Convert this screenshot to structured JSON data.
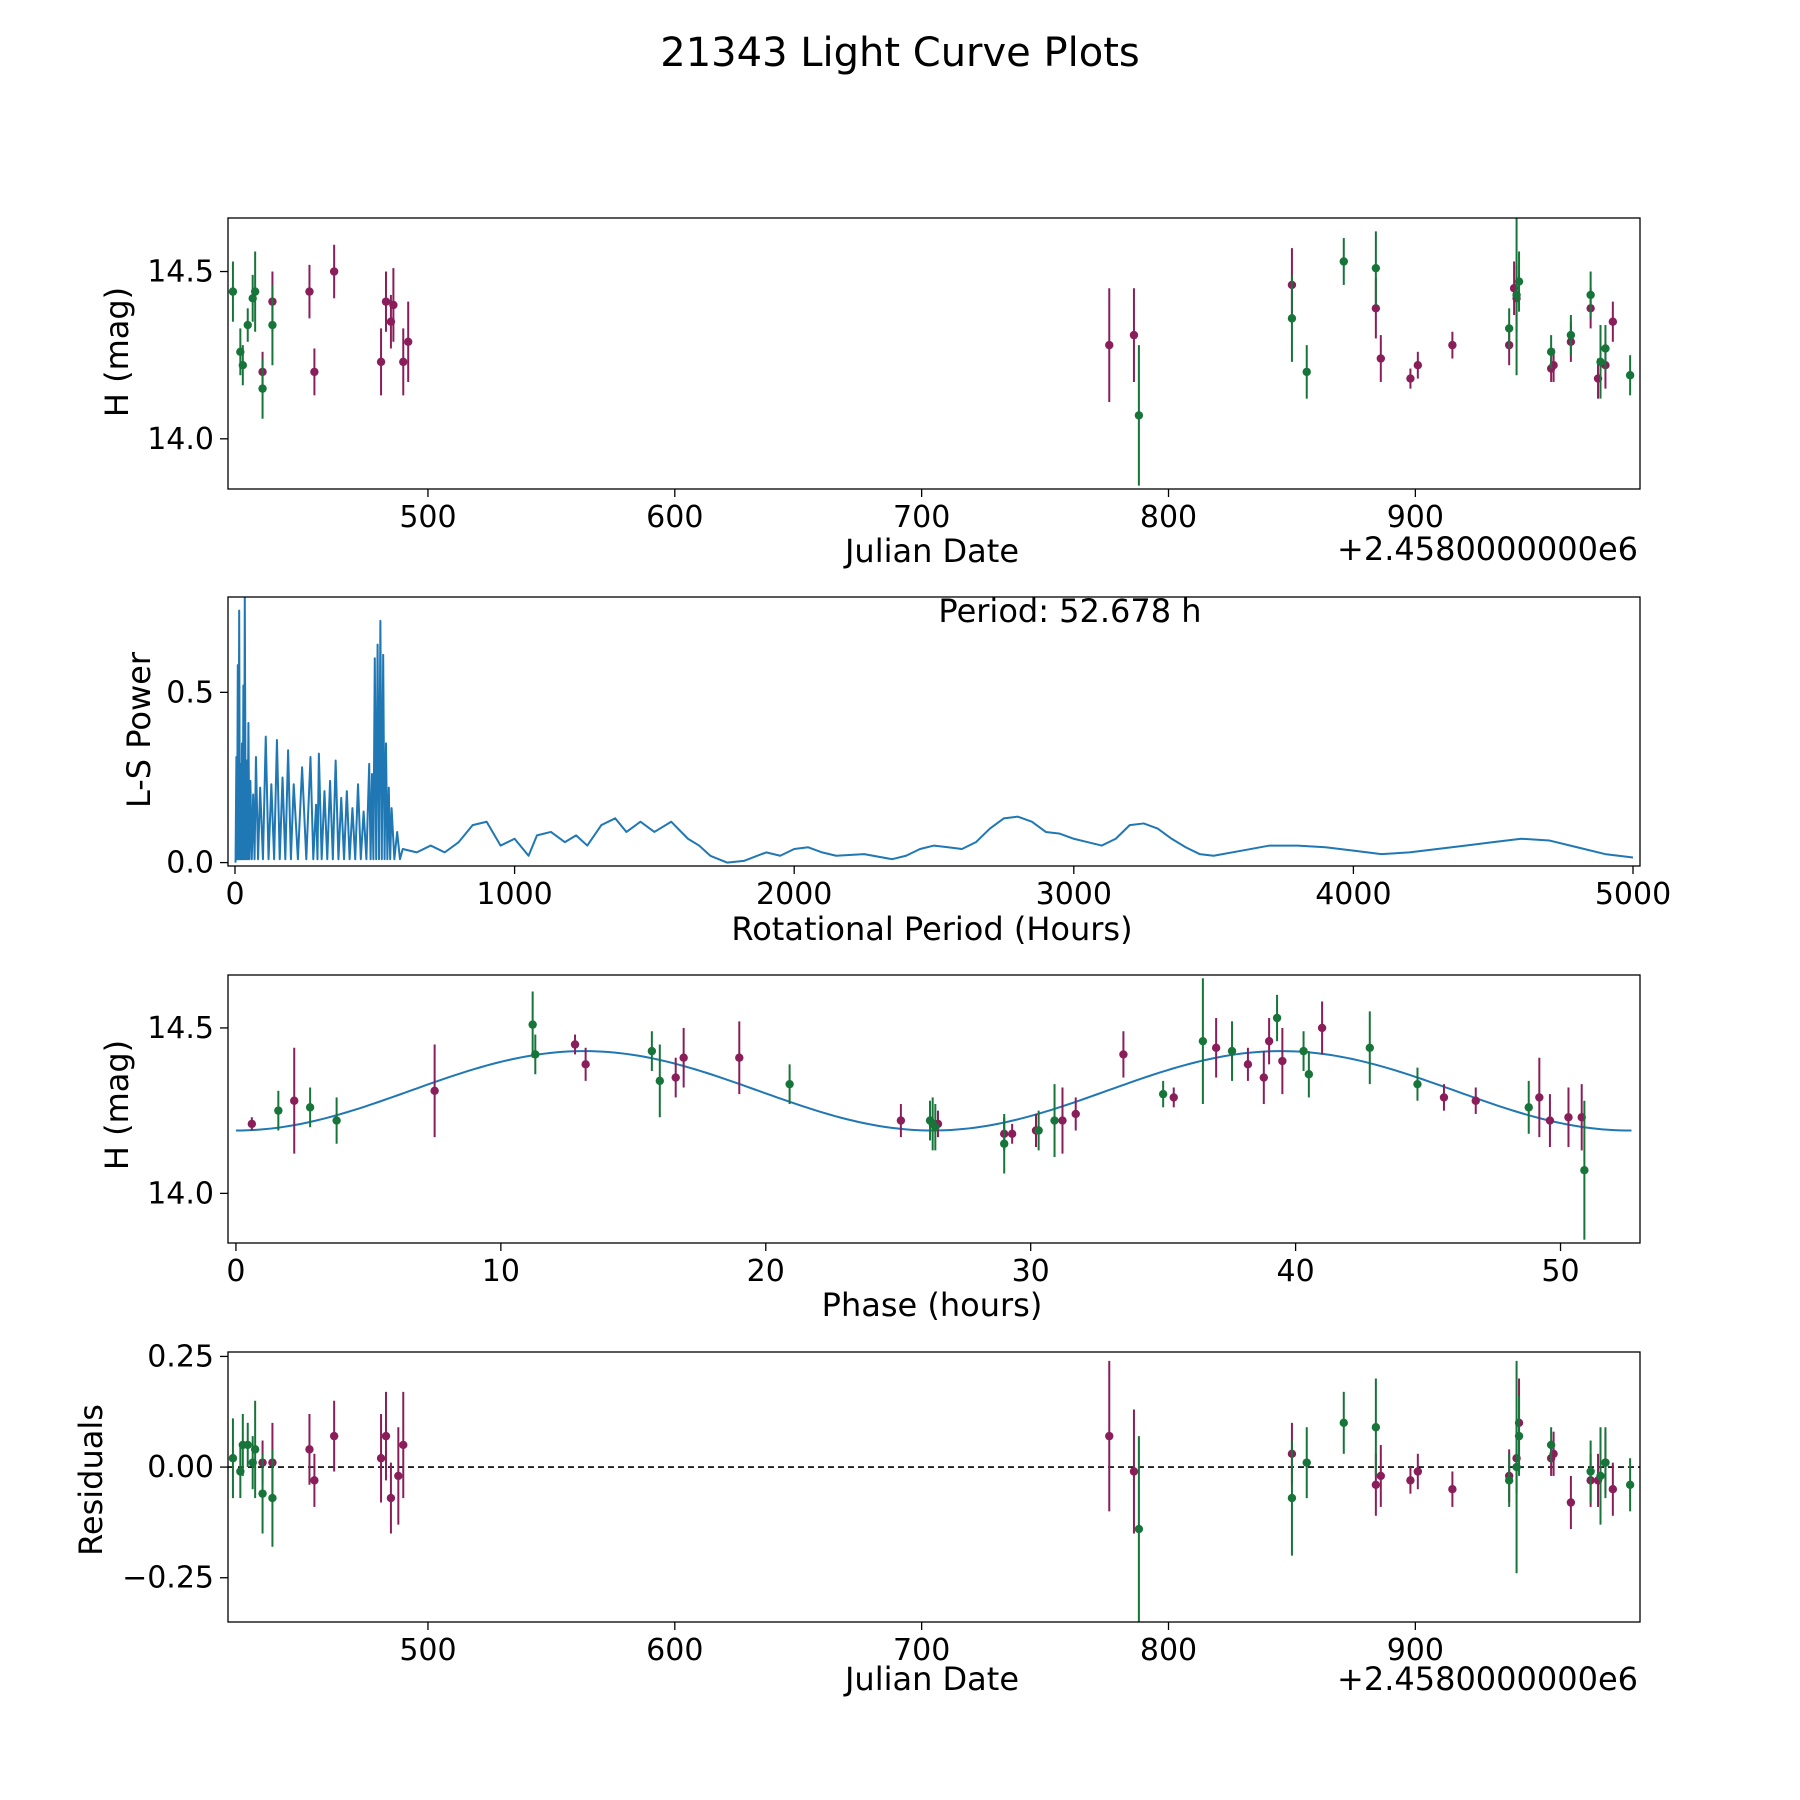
{
  "chart_data": {
    "title": "21343 Light Curve Plots",
    "colors": {
      "series_a": "#8a1e5a",
      "series_b": "#17753a",
      "curve": "#1f77b4",
      "axis": "#000000"
    },
    "panels": [
      {
        "id": "lightcurve",
        "type": "scatter",
        "xlabel": "Julian Date",
        "ylabel": "H (mag)",
        "offset_label": "+2.4580000000e6",
        "xlim": [
          419,
          991
        ],
        "ylim": [
          13.85,
          14.66
        ],
        "xticks": [
          500,
          600,
          700,
          800,
          900
        ],
        "yticks": [
          14.0,
          14.5
        ],
        "ytick_labels": [
          "14.0",
          "14.5"
        ],
        "series": [
          {
            "name": "series_a",
            "color": "#8a1e5a",
            "x": [
              433,
              437,
              452,
              454,
              462,
              481,
              483,
              485,
              486,
              490,
              492,
              776,
              786,
              850,
              884,
              886,
              898,
              901,
              915,
              938,
              940,
              941,
              955,
              956,
              963,
              971,
              974,
              977,
              980
            ],
            "y": [
              14.2,
              14.41,
              14.44,
              14.2,
              14.5,
              14.23,
              14.41,
              14.35,
              14.4,
              14.23,
              14.29,
              14.28,
              14.31,
              14.46,
              14.39,
              14.24,
              14.18,
              14.22,
              14.28,
              14.28,
              14.45,
              14.42,
              14.21,
              14.22,
              14.29,
              14.39,
              14.18,
              14.22,
              14.35
            ],
            "err": [
              0.06,
              0.09,
              0.08,
              0.07,
              0.08,
              0.1,
              0.09,
              0.08,
              0.11,
              0.1,
              0.12,
              0.17,
              0.14,
              0.11,
              0.09,
              0.07,
              0.03,
              0.04,
              0.04,
              0.06,
              0.08,
              0.1,
              0.04,
              0.05,
              0.06,
              0.06,
              0.06,
              0.07,
              0.06
            ]
          },
          {
            "name": "series_b",
            "color": "#17753a",
            "x": [
              421,
              424,
              425,
              427,
              429,
              430,
              433,
              437,
              788,
              850,
              856,
              871,
              884,
              938,
              941,
              942,
              955,
              963,
              971,
              975,
              977,
              987
            ],
            "y": [
              14.44,
              14.26,
              14.22,
              14.34,
              14.42,
              14.44,
              14.15,
              14.34,
              14.07,
              14.36,
              14.2,
              14.53,
              14.51,
              14.33,
              14.43,
              14.47,
              14.26,
              14.31,
              14.43,
              14.23,
              14.27,
              14.19
            ],
            "err": [
              0.09,
              0.07,
              0.06,
              0.05,
              0.07,
              0.12,
              0.09,
              0.12,
              0.21,
              0.13,
              0.08,
              0.07,
              0.11,
              0.06,
              0.24,
              0.09,
              0.05,
              0.06,
              0.07,
              0.11,
              0.07,
              0.06
            ]
          }
        ]
      },
      {
        "id": "periodogram",
        "type": "line",
        "xlabel": "Rotational Period (Hours)",
        "ylabel": "L-S Power",
        "annotation": "Period: 52.678 h",
        "xlim": [
          -25,
          5025
        ],
        "ylim": [
          -0.01,
          0.78
        ],
        "xticks": [
          0,
          1000,
          2000,
          3000,
          4000,
          5000
        ],
        "yticks": [
          0.0,
          0.5
        ],
        "ytick_labels": [
          "0.0",
          "0.5"
        ],
        "color": "#1f77b4",
        "smooth": {
          "x": [
            600,
            650,
            700,
            750,
            800,
            850,
            900,
            950,
            1000,
            1050,
            1080,
            1130,
            1180,
            1220,
            1260,
            1310,
            1360,
            1400,
            1450,
            1500,
            1560,
            1620,
            1660,
            1700,
            1760,
            1820,
            1900,
            1950,
            2000,
            2050,
            2100,
            2150,
            2250,
            2350,
            2400,
            2450,
            2500,
            2550,
            2600,
            2650,
            2700,
            2750,
            2800,
            2850,
            2900,
            2950,
            3000,
            3050,
            3100,
            3150,
            3200,
            3250,
            3300,
            3350,
            3400,
            3450,
            3500,
            3600,
            3700,
            3800,
            3900,
            4000,
            4100,
            4200,
            4300,
            4400,
            4500,
            4600,
            4700,
            4800,
            4900,
            5000
          ],
          "y": [
            0.04,
            0.03,
            0.05,
            0.03,
            0.06,
            0.11,
            0.12,
            0.05,
            0.07,
            0.02,
            0.08,
            0.09,
            0.06,
            0.08,
            0.05,
            0.11,
            0.13,
            0.09,
            0.12,
            0.09,
            0.12,
            0.07,
            0.05,
            0.02,
            0.0,
            0.005,
            0.03,
            0.02,
            0.04,
            0.045,
            0.03,
            0.02,
            0.025,
            0.01,
            0.02,
            0.04,
            0.05,
            0.045,
            0.04,
            0.06,
            0.1,
            0.13,
            0.135,
            0.12,
            0.09,
            0.085,
            0.07,
            0.06,
            0.05,
            0.07,
            0.11,
            0.115,
            0.1,
            0.07,
            0.045,
            0.025,
            0.02,
            0.035,
            0.05,
            0.05,
            0.045,
            0.035,
            0.025,
            0.03,
            0.04,
            0.05,
            0.06,
            0.07,
            0.065,
            0.045,
            0.025,
            0.015
          ]
        },
        "peaks": {
          "x": [
            5,
            10,
            15,
            20,
            25,
            30,
            35,
            42,
            48,
            55,
            65,
            75,
            90,
            110,
            130,
            150,
            170,
            190,
            210,
            240,
            270,
            290,
            300,
            320,
            340,
            360,
            380,
            400,
            420,
            440,
            460,
            480,
            490,
            500,
            510,
            520,
            530,
            540,
            550,
            560,
            580
          ],
          "y": [
            0.31,
            0.58,
            0.74,
            0.29,
            0.35,
            0.52,
            0.78,
            0.3,
            0.41,
            0.24,
            0.2,
            0.31,
            0.22,
            0.37,
            0.23,
            0.36,
            0.25,
            0.33,
            0.23,
            0.28,
            0.31,
            0.17,
            0.32,
            0.21,
            0.24,
            0.3,
            0.19,
            0.21,
            0.16,
            0.23,
            0.15,
            0.29,
            0.26,
            0.6,
            0.64,
            0.71,
            0.61,
            0.35,
            0.22,
            0.16,
            0.09
          ]
        }
      },
      {
        "id": "phase",
        "type": "scatter",
        "xlabel": "Phase (hours)",
        "ylabel": "H (mag)",
        "xlim": [
          -0.3,
          53.0
        ],
        "ylim": [
          13.85,
          14.66
        ],
        "xticks": [
          0,
          10,
          20,
          30,
          40,
          50
        ],
        "yticks": [
          14.0,
          14.5
        ],
        "ytick_labels": [
          "14.0",
          "14.5"
        ],
        "model": {
          "mean": 14.31,
          "amplitude": 0.12,
          "period": 26.3,
          "t0": 0.0,
          "xmax": 52.678,
          "color": "#1f77b4"
        },
        "series": [
          {
            "name": "series_a",
            "color": "#8a1e5a",
            "x": [
              0.6,
              2.2,
              7.5,
              12.8,
              13.2,
              16.6,
              16.9,
              19.0,
              25.1,
              26.5,
              29.0,
              29.3,
              30.2,
              31.2,
              31.7,
              33.5,
              35.4,
              37.0,
              38.2,
              38.8,
              39.0,
              39.5,
              41.0,
              45.6,
              46.8,
              49.2,
              49.6,
              50.3,
              50.8
            ],
            "y": [
              14.21,
              14.28,
              14.31,
              14.45,
              14.39,
              14.35,
              14.41,
              14.41,
              14.22,
              14.21,
              14.18,
              14.18,
              14.19,
              14.22,
              14.24,
              14.42,
              14.29,
              14.44,
              14.39,
              14.35,
              14.46,
              14.4,
              14.5,
              14.29,
              14.28,
              14.29,
              14.22,
              14.23,
              14.23
            ],
            "err": [
              0.02,
              0.16,
              0.14,
              0.03,
              0.05,
              0.06,
              0.09,
              0.11,
              0.05,
              0.04,
              0.05,
              0.03,
              0.05,
              0.1,
              0.05,
              0.07,
              0.03,
              0.09,
              0.05,
              0.08,
              0.07,
              0.1,
              0.08,
              0.04,
              0.04,
              0.12,
              0.08,
              0.09,
              0.1
            ]
          },
          {
            "name": "series_b",
            "color": "#17753a",
            "x": [
              1.6,
              2.8,
              3.8,
              11.2,
              11.3,
              15.7,
              16.0,
              20.9,
              26.2,
              26.3,
              26.4,
              29.0,
              30.3,
              30.9,
              35.0,
              36.5,
              37.6,
              39.3,
              40.3,
              40.5,
              42.8,
              44.6,
              48.8,
              50.9
            ],
            "y": [
              14.25,
              14.26,
              14.22,
              14.51,
              14.42,
              14.43,
              14.34,
              14.33,
              14.22,
              14.21,
              14.2,
              14.15,
              14.19,
              14.22,
              14.3,
              14.46,
              14.43,
              14.53,
              14.43,
              14.36,
              14.44,
              14.33,
              14.26,
              14.07
            ],
            "err": [
              0.06,
              0.06,
              0.07,
              0.1,
              0.06,
              0.06,
              0.11,
              0.06,
              0.06,
              0.08,
              0.07,
              0.09,
              0.06,
              0.11,
              0.04,
              0.19,
              0.09,
              0.07,
              0.06,
              0.07,
              0.11,
              0.05,
              0.08,
              0.21
            ]
          }
        ]
      },
      {
        "id": "residuals",
        "type": "scatter",
        "xlabel": "Julian Date",
        "ylabel": "Residuals",
        "offset_label": "+2.4580000000e6",
        "xlim": [
          419,
          991
        ],
        "ylim": [
          -0.35,
          0.26
        ],
        "xticks": [
          500,
          600,
          700,
          800,
          900
        ],
        "yticks": [
          -0.25,
          0.0,
          0.25
        ],
        "ytick_labels": [
          "−0.25",
          "0.00",
          "0.25"
        ],
        "zero_line": true,
        "series": [
          {
            "name": "series_a",
            "color": "#8a1e5a",
            "x": [
              433,
              437,
              452,
              454,
              462,
              481,
              483,
              485,
              488,
              490,
              776,
              786,
              850,
              884,
              886,
              898,
              901,
              915,
              938,
              941,
              942,
              955,
              956,
              963,
              971,
              974,
              977,
              980
            ],
            "y": [
              0.01,
              0.01,
              0.04,
              -0.03,
              0.07,
              0.02,
              0.07,
              -0.07,
              -0.02,
              0.05,
              0.07,
              -0.01,
              0.03,
              -0.04,
              -0.02,
              -0.03,
              -0.01,
              -0.05,
              -0.02,
              0.02,
              0.1,
              0.02,
              0.03,
              -0.08,
              -0.03,
              -0.03,
              0.01,
              -0.05
            ],
            "err": [
              0.05,
              0.09,
              0.08,
              0.06,
              0.08,
              0.1,
              0.1,
              0.08,
              0.11,
              0.12,
              0.17,
              0.14,
              0.07,
              0.07,
              0.07,
              0.03,
              0.04,
              0.04,
              0.06,
              0.08,
              0.1,
              0.04,
              0.05,
              0.06,
              0.06,
              0.06,
              0.07,
              0.06
            ]
          },
          {
            "name": "series_b",
            "color": "#17753a",
            "x": [
              421,
              424,
              425,
              427,
              429,
              430,
              433,
              437,
              788,
              850,
              856,
              871,
              884,
              938,
              941,
              942,
              955,
              971,
              975,
              977,
              987
            ],
            "y": [
              0.02,
              -0.01,
              0.05,
              0.05,
              0.01,
              0.04,
              -0.06,
              -0.07,
              -0.14,
              -0.07,
              0.01,
              0.1,
              0.09,
              -0.03,
              0.0,
              0.07,
              0.05,
              -0.01,
              -0.02,
              0.01,
              -0.04
            ],
            "err": [
              0.09,
              0.06,
              0.07,
              0.05,
              0.06,
              0.11,
              0.09,
              0.11,
              0.21,
              0.13,
              0.08,
              0.07,
              0.11,
              0.06,
              0.24,
              0.09,
              0.04,
              0.07,
              0.11,
              0.08,
              0.06
            ]
          }
        ]
      }
    ]
  }
}
